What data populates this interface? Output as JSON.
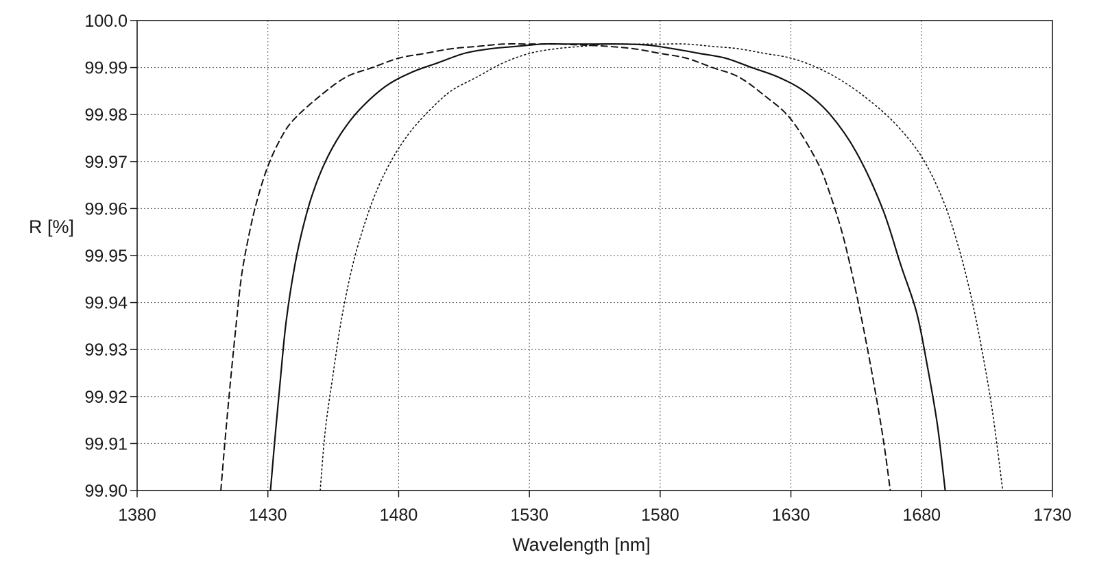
{
  "chart_data": {
    "type": "line",
    "title": "",
    "xlabel": "Wavelength [nm]",
    "ylabel": "R [%]",
    "xlim": [
      1380,
      1730
    ],
    "ylim": [
      99.9,
      100.0
    ],
    "x_ticks": [
      1380,
      1430,
      1480,
      1530,
      1580,
      1630,
      1680,
      1730
    ],
    "y_ticks": [
      99.9,
      99.91,
      99.92,
      99.93,
      99.94,
      99.95,
      99.96,
      99.97,
      99.98,
      99.99,
      100.0
    ],
    "x_tick_labels": [
      "1380",
      "1430",
      "1480",
      "1530",
      "1580",
      "1630",
      "1680",
      "1730"
    ],
    "y_tick_labels": [
      "99.90",
      "99.91",
      "99.92",
      "99.93",
      "99.94",
      "99.95",
      "99.96",
      "99.97",
      "99.98",
      "99.99",
      "100.0"
    ],
    "grid": true,
    "legend": false,
    "series": [
      {
        "line_style": "dashed",
        "color": "#111111",
        "points": [
          [
            1412,
            99.9
          ],
          [
            1414,
            99.913
          ],
          [
            1416,
            99.925
          ],
          [
            1418,
            99.936
          ],
          [
            1420,
            99.946
          ],
          [
            1423,
            99.955
          ],
          [
            1426,
            99.962
          ],
          [
            1430,
            99.969
          ],
          [
            1435,
            99.975
          ],
          [
            1440,
            99.979
          ],
          [
            1450,
            99.984
          ],
          [
            1460,
            99.988
          ],
          [
            1470,
            99.99
          ],
          [
            1480,
            99.992
          ],
          [
            1490,
            99.993
          ],
          [
            1500,
            99.994
          ],
          [
            1510,
            99.9945
          ],
          [
            1520,
            99.995
          ],
          [
            1530,
            99.995
          ],
          [
            1540,
            99.995
          ],
          [
            1550,
            99.9948
          ],
          [
            1560,
            99.9945
          ],
          [
            1570,
            99.994
          ],
          [
            1580,
            99.993
          ],
          [
            1590,
            99.992
          ],
          [
            1600,
            99.99
          ],
          [
            1610,
            99.988
          ],
          [
            1620,
            99.984
          ],
          [
            1630,
            99.979
          ],
          [
            1640,
            99.97
          ],
          [
            1645,
            99.963
          ],
          [
            1650,
            99.954
          ],
          [
            1655,
            99.942
          ],
          [
            1660,
            99.928
          ],
          [
            1665,
            99.912
          ],
          [
            1668,
            99.9
          ]
        ]
      },
      {
        "line_style": "solid",
        "color": "#111111",
        "points": [
          [
            1431,
            99.9
          ],
          [
            1433,
            99.913
          ],
          [
            1435,
            99.925
          ],
          [
            1437,
            99.936
          ],
          [
            1440,
            99.947
          ],
          [
            1443,
            99.955
          ],
          [
            1447,
            99.963
          ],
          [
            1452,
            99.97
          ],
          [
            1458,
            99.976
          ],
          [
            1465,
            99.981
          ],
          [
            1475,
            99.986
          ],
          [
            1485,
            99.989
          ],
          [
            1495,
            99.991
          ],
          [
            1505,
            99.993
          ],
          [
            1515,
            99.994
          ],
          [
            1525,
            99.9945
          ],
          [
            1535,
            99.995
          ],
          [
            1545,
            99.995
          ],
          [
            1555,
            99.995
          ],
          [
            1565,
            99.995
          ],
          [
            1575,
            99.9948
          ],
          [
            1585,
            99.994
          ],
          [
            1595,
            99.993
          ],
          [
            1605,
            99.992
          ],
          [
            1615,
            99.99
          ],
          [
            1625,
            99.988
          ],
          [
            1635,
            99.985
          ],
          [
            1645,
            99.98
          ],
          [
            1655,
            99.972
          ],
          [
            1665,
            99.96
          ],
          [
            1672,
            99.948
          ],
          [
            1678,
            99.938
          ],
          [
            1682,
            99.927
          ],
          [
            1686,
            99.914
          ],
          [
            1689,
            99.9
          ]
        ]
      },
      {
        "line_style": "dotted",
        "color": "#111111",
        "points": [
          [
            1450,
            99.9
          ],
          [
            1452,
            99.913
          ],
          [
            1455,
            99.925
          ],
          [
            1458,
            99.936
          ],
          [
            1462,
            99.947
          ],
          [
            1466,
            99.955
          ],
          [
            1471,
            99.963
          ],
          [
            1477,
            99.97
          ],
          [
            1484,
            99.976
          ],
          [
            1492,
            99.981
          ],
          [
            1500,
            99.985
          ],
          [
            1510,
            99.988
          ],
          [
            1520,
            99.991
          ],
          [
            1530,
            99.993
          ],
          [
            1540,
            99.994
          ],
          [
            1550,
            99.9945
          ],
          [
            1560,
            99.995
          ],
          [
            1570,
            99.995
          ],
          [
            1580,
            99.995
          ],
          [
            1590,
            99.995
          ],
          [
            1600,
            99.9945
          ],
          [
            1610,
            99.994
          ],
          [
            1620,
            99.993
          ],
          [
            1630,
            99.992
          ],
          [
            1640,
            99.99
          ],
          [
            1650,
            99.987
          ],
          [
            1660,
            99.983
          ],
          [
            1670,
            99.978
          ],
          [
            1680,
            99.971
          ],
          [
            1688,
            99.962
          ],
          [
            1694,
            99.952
          ],
          [
            1699,
            99.941
          ],
          [
            1703,
            99.93
          ],
          [
            1707,
            99.917
          ],
          [
            1711,
            99.9
          ]
        ]
      }
    ]
  }
}
